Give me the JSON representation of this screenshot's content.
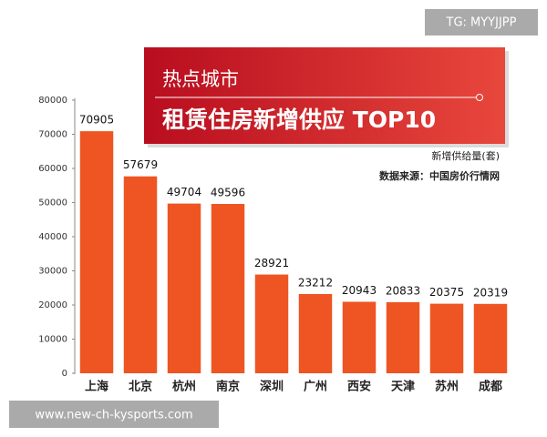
{
  "chart_data": {
    "type": "bar",
    "kicker": "热点城市",
    "title": "租赁住房新增供应 TOP10",
    "unit_note": "新增供给量(套)",
    "source": "数据来源：中国房价行情网",
    "categories": [
      "上海",
      "北京",
      "杭州",
      "南京",
      "深圳",
      "广州",
      "西安",
      "天津",
      "苏州",
      "成都"
    ],
    "values": [
      70905,
      57679,
      49704,
      49596,
      28921,
      23212,
      20943,
      20833,
      20375,
      20319
    ],
    "color": "#ee5522",
    "ylim": [
      0,
      80000
    ],
    "yticks": [
      0,
      10000,
      20000,
      30000,
      40000,
      50000,
      60000,
      70000,
      80000
    ],
    "grid": false
  },
  "watermarks": {
    "top": "TG: MYYJJPP",
    "bottom": "www.new-ch-kysports.com"
  }
}
